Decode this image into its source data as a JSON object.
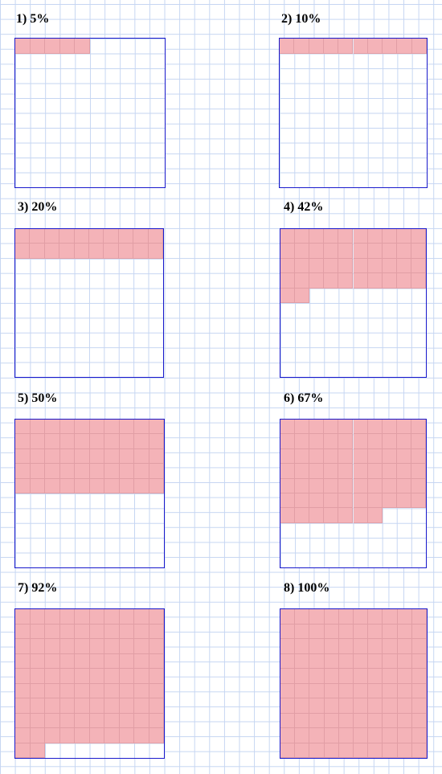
{
  "panels": [
    {
      "label": "1) 5%",
      "percent": 5
    },
    {
      "label": "2) 10%",
      "percent": 10
    },
    {
      "label": "3) 20%",
      "percent": 20
    },
    {
      "label": "4) 42%",
      "percent": 42
    },
    {
      "label": "5) 50%",
      "percent": 50
    },
    {
      "label": "6) 67%",
      "percent": 67
    },
    {
      "label": "7) 92%",
      "percent": 92
    },
    {
      "label": "8) 100%",
      "percent": 100
    }
  ],
  "colors": {
    "shade": "#f4b3b8",
    "border": "#1a1acc",
    "grid": "#c6d6f2"
  }
}
